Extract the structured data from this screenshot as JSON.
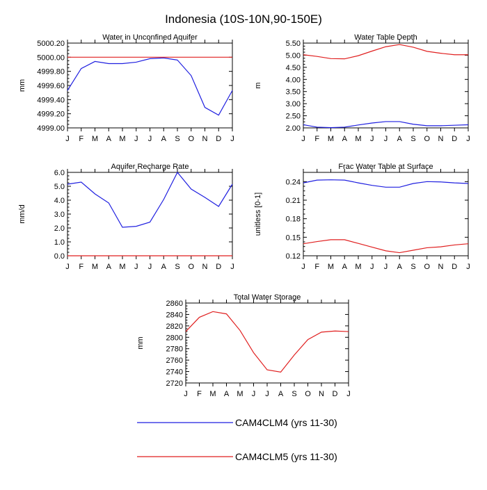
{
  "title": "Indonesia (10S-10N,90-150E)",
  "months": [
    "J",
    "F",
    "M",
    "A",
    "M",
    "J",
    "J",
    "A",
    "S",
    "O",
    "N",
    "D",
    "J"
  ],
  "colors": {
    "clm4": "#1f1fe0",
    "clm5": "#e01f1f"
  },
  "legend": [
    {
      "label": "CAM4CLM4 (yrs 11-30)",
      "color": "#1f1fe0"
    },
    {
      "label": "CAM4CLM5 (yrs 11-30)",
      "color": "#e01f1f"
    }
  ],
  "chart_data": [
    {
      "type": "line",
      "title": "Water in Unconfined Aquifer",
      "ylabel": "mm",
      "ylim": [
        4999.0,
        5000.2
      ],
      "yticks": [
        4999.0,
        4999.2,
        4999.4,
        4999.6,
        4999.8,
        5000.0,
        5000.2
      ],
      "ytick_labels": [
        "4999.00",
        "4999.20",
        "4999.40",
        "4999.60",
        "4999.80",
        "5000.00",
        "5000.20"
      ],
      "categories": [
        "J",
        "F",
        "M",
        "A",
        "M",
        "J",
        "J",
        "A",
        "S",
        "O",
        "N",
        "D",
        "J"
      ],
      "series": [
        {
          "name": "CAM4CLM4 (yrs 11-30)",
          "values": [
            4999.53,
            4999.84,
            4999.94,
            4999.91,
            4999.91,
            4999.93,
            4999.98,
            4999.99,
            4999.96,
            4999.74,
            4999.29,
            4999.18,
            4999.53
          ]
        },
        {
          "name": "CAM4CLM5 (yrs 11-30)",
          "values": [
            5000.0,
            5000.0,
            5000.0,
            5000.0,
            5000.0,
            5000.0,
            5000.0,
            5000.0,
            5000.0,
            5000.0,
            5000.0,
            5000.0,
            5000.0
          ]
        }
      ]
    },
    {
      "type": "line",
      "title": "Water Table Depth",
      "ylabel": "m",
      "ylim": [
        2.0,
        5.5
      ],
      "yticks": [
        2.0,
        2.5,
        3.0,
        3.5,
        4.0,
        4.5,
        5.0,
        5.5
      ],
      "ytick_labels": [
        "2.00",
        "2.50",
        "3.00",
        "3.50",
        "4.00",
        "4.50",
        "5.00",
        "5.50"
      ],
      "categories": [
        "J",
        "F",
        "M",
        "A",
        "M",
        "J",
        "J",
        "A",
        "S",
        "O",
        "N",
        "D",
        "J"
      ],
      "series": [
        {
          "name": "CAM4CLM4 (yrs 11-30)",
          "values": [
            2.13,
            2.03,
            2.01,
            2.03,
            2.12,
            2.2,
            2.26,
            2.26,
            2.15,
            2.09,
            2.09,
            2.11,
            2.13
          ]
        },
        {
          "name": "CAM4CLM5 (yrs 11-30)",
          "values": [
            5.02,
            4.95,
            4.86,
            4.85,
            4.98,
            5.17,
            5.35,
            5.44,
            5.33,
            5.16,
            5.08,
            5.02,
            5.02
          ]
        }
      ]
    },
    {
      "type": "line",
      "title": "Aquifer Recharge Rate",
      "ylabel": "mm/d",
      "ylim": [
        0.0,
        6.0
      ],
      "yticks": [
        0.0,
        1.0,
        2.0,
        3.0,
        4.0,
        5.0,
        6.0
      ],
      "ytick_labels": [
        "0.0",
        "1.0",
        "2.0",
        "3.0",
        "4.0",
        "5.0",
        "6.0"
      ],
      "categories": [
        "J",
        "F",
        "M",
        "A",
        "M",
        "J",
        "J",
        "A",
        "S",
        "O",
        "N",
        "D",
        "J"
      ],
      "series": [
        {
          "name": "CAM4CLM4 (yrs 11-30)",
          "values": [
            5.15,
            5.3,
            4.45,
            3.8,
            2.05,
            2.12,
            2.42,
            4.05,
            6.0,
            4.8,
            4.2,
            3.55,
            5.15
          ]
        },
        {
          "name": "CAM4CLM5 (yrs 11-30)",
          "values": [
            0,
            0,
            0,
            0,
            0,
            0,
            0,
            0,
            0,
            0,
            0,
            0,
            0
          ]
        }
      ]
    },
    {
      "type": "line",
      "title": "Frac Water Table at Surface",
      "ylabel": "unitless [0-1]",
      "ylim": [
        0.12,
        0.255
      ],
      "yticks": [
        0.12,
        0.15,
        0.18,
        0.21,
        0.24
      ],
      "ytick_labels": [
        "0.12",
        "0.15",
        "0.18",
        "0.21",
        "0.24"
      ],
      "categories": [
        "J",
        "F",
        "M",
        "A",
        "M",
        "J",
        "J",
        "A",
        "S",
        "O",
        "N",
        "D",
        "J"
      ],
      "series": [
        {
          "name": "CAM4CLM4 (yrs 11-30)",
          "values": [
            0.238,
            0.2425,
            0.243,
            0.2425,
            0.238,
            0.234,
            0.231,
            0.231,
            0.237,
            0.24,
            0.2395,
            0.238,
            0.237
          ]
        },
        {
          "name": "CAM4CLM5 (yrs 11-30)",
          "values": [
            0.1395,
            0.143,
            0.146,
            0.146,
            0.14,
            0.134,
            0.128,
            0.125,
            0.129,
            0.133,
            0.1345,
            0.1375,
            0.1395
          ]
        }
      ]
    },
    {
      "type": "line",
      "title": "Total Water Storage",
      "ylabel": "mm",
      "ylim": [
        2720,
        2860
      ],
      "yticks": [
        2720,
        2740,
        2760,
        2780,
        2800,
        2820,
        2840,
        2860
      ],
      "ytick_labels": [
        "2720",
        "2740",
        "2760",
        "2780",
        "2800",
        "2820",
        "2840",
        "2860"
      ],
      "categories": [
        "J",
        "F",
        "M",
        "A",
        "M",
        "J",
        "J",
        "A",
        "S",
        "O",
        "N",
        "D",
        "J"
      ],
      "series": [
        {
          "name": "CAM4CLM5 (yrs 11-30)",
          "values": [
            2810,
            2835,
            2845,
            2841,
            2812,
            2773,
            2743,
            2739,
            2769,
            2796,
            2809,
            2811,
            2810
          ]
        }
      ]
    }
  ]
}
